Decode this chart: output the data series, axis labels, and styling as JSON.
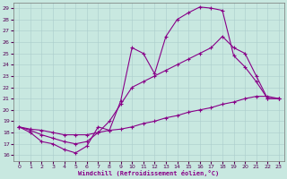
{
  "bg_color": "#c8e8e0",
  "line_color": "#880088",
  "xlabel": "Windchill (Refroidissement éolien,°C)",
  "xlim": [
    -0.5,
    23.5
  ],
  "ylim": [
    15.5,
    29.5
  ],
  "xticks": [
    0,
    1,
    2,
    3,
    4,
    5,
    6,
    7,
    8,
    9,
    10,
    11,
    12,
    13,
    14,
    15,
    16,
    17,
    18,
    19,
    20,
    21,
    22,
    23
  ],
  "yticks": [
    16,
    17,
    18,
    19,
    20,
    21,
    22,
    23,
    24,
    25,
    26,
    27,
    28,
    29
  ],
  "curves": [
    {
      "x": [
        0,
        1,
        2,
        3,
        4,
        5,
        6,
        7,
        8,
        9,
        10,
        11,
        12,
        13,
        14,
        15,
        16,
        17,
        18,
        19,
        20,
        21,
        22,
        23
      ],
      "y": [
        18.5,
        18.0,
        17.2,
        17.0,
        16.5,
        16.2,
        16.8,
        18.5,
        18.2,
        20.8,
        25.5,
        25.0,
        23.2,
        26.5,
        28.0,
        28.6,
        29.1,
        29.0,
        28.8,
        24.8,
        23.8,
        22.5,
        21.0,
        21.0
      ]
    },
    {
      "x": [
        0,
        1,
        2,
        3,
        4,
        5,
        6,
        7,
        8,
        9,
        10,
        11,
        12,
        13,
        14,
        15,
        16,
        17,
        18,
        19,
        20,
        21,
        22,
        23
      ],
      "y": [
        18.5,
        18.3,
        18.2,
        18.0,
        17.8,
        17.8,
        17.8,
        18.0,
        18.2,
        18.3,
        18.5,
        18.8,
        19.0,
        19.3,
        19.5,
        19.8,
        20.0,
        20.2,
        20.5,
        20.7,
        21.0,
        21.2,
        21.2,
        21.0
      ]
    },
    {
      "x": [
        0,
        1,
        2,
        3,
        4,
        5,
        6,
        7,
        8,
        9,
        10,
        11,
        12,
        13,
        14,
        15,
        16,
        17,
        18,
        19,
        20,
        21,
        22,
        23
      ],
      "y": [
        18.5,
        18.2,
        17.8,
        17.5,
        17.2,
        17.0,
        17.2,
        18.0,
        19.0,
        20.5,
        22.0,
        22.5,
        23.0,
        23.5,
        24.0,
        24.5,
        25.0,
        25.5,
        26.5,
        25.5,
        25.0,
        23.0,
        21.0,
        21.0
      ]
    }
  ]
}
